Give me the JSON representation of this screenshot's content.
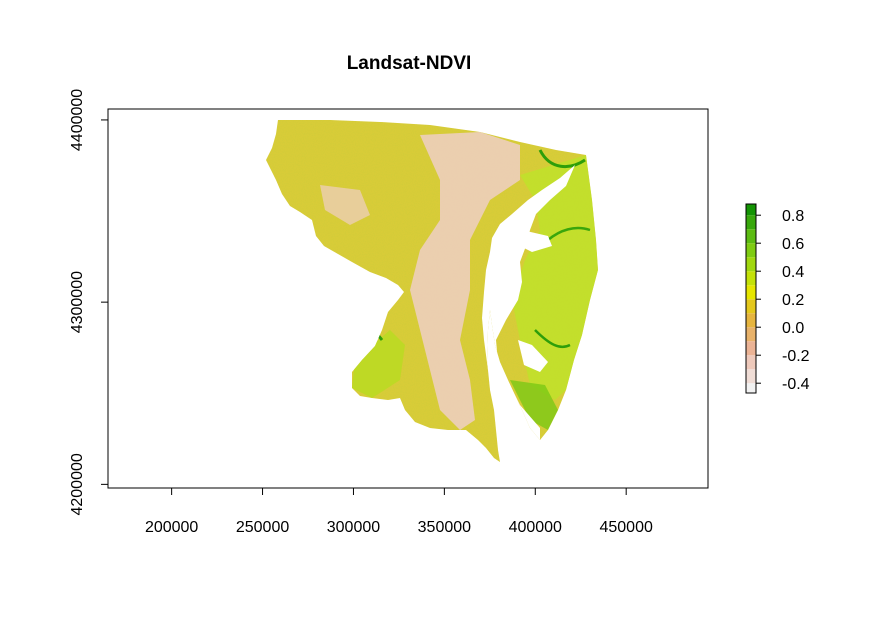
{
  "chart_data": {
    "type": "heatmap",
    "title": "Landsat-NDVI",
    "xlabel": "",
    "ylabel": "",
    "xlim": [
      165000,
      495000
    ],
    "ylim": [
      4198000,
      4406000
    ],
    "x_ticks": [
      200000,
      250000,
      300000,
      350000,
      400000,
      450000
    ],
    "x_tick_labels": [
      "200000",
      "250000",
      "300000",
      "350000",
      "400000",
      "450000"
    ],
    "y_ticks": [
      4200000,
      4300000,
      4400000
    ],
    "y_tick_labels": [
      "4200000",
      "4300000",
      "4400000"
    ],
    "grid": false,
    "legend": {
      "position": "right",
      "range": [
        -0.47,
        0.88
      ],
      "breaks": [
        -0.47,
        -0.4,
        -0.3,
        -0.2,
        -0.1,
        0.0,
        0.1,
        0.2,
        0.3,
        0.4,
        0.5,
        0.6,
        0.7,
        0.8,
        0.88
      ],
      "colors": [
        "#f2f2f2",
        "#f0ddd6",
        "#eec9bb",
        "#ebb395",
        "#e8b26a",
        "#e6b53f",
        "#e4c81c",
        "#e6e600",
        "#c4e208",
        "#a1d80f",
        "#7fcc12",
        "#5cbc12",
        "#38a80c",
        "#149404"
      ],
      "tick_values": [
        -0.4,
        -0.2,
        0.0,
        0.2,
        0.4,
        0.6,
        0.8
      ],
      "tick_labels": [
        "-0.4",
        "-0.2",
        "0.0",
        "0.2",
        "0.4",
        "0.6",
        "0.8"
      ]
    }
  }
}
